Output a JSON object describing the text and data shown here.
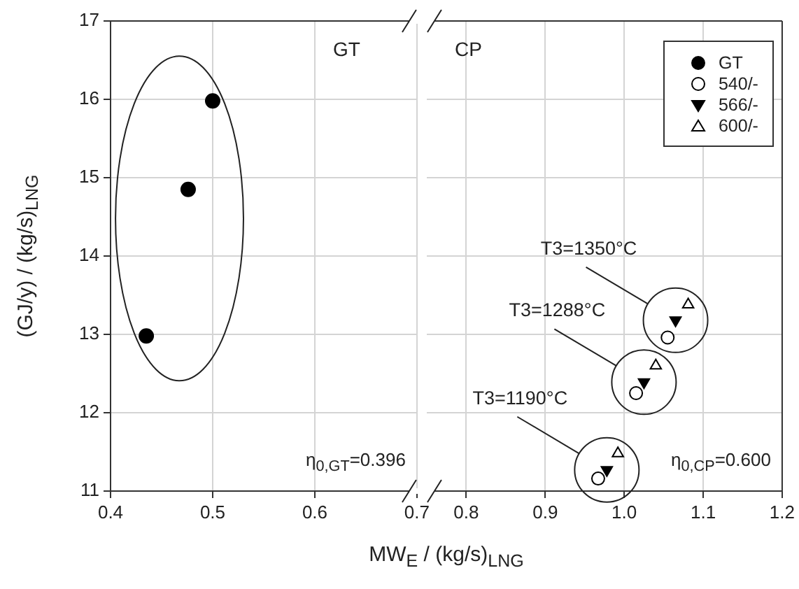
{
  "chart_data": [
    {
      "type": "scatter",
      "ylabel": "(GJ/y) / (kg/s)$_{LNG}$",
      "xlabel": "MW$_{E}$ / (kg/s)$_{LNG}$",
      "xlim": [
        0.4,
        0.7
      ],
      "xticks": [
        0.4,
        0.5,
        0.6,
        0.7
      ],
      "ylim": [
        11,
        17
      ],
      "yticks": [
        11,
        12,
        13,
        14,
        15,
        16,
        17
      ],
      "grid": true,
      "annotations": [
        "GT",
        "η$_{0,GT}$=0.396"
      ],
      "series": [
        {
          "color": "#000000",
          "marker": "circle",
          "x": [
            0.435,
            0.476,
            0.5
          ],
          "values": [
            12.98,
            14.85,
            15.98
          ]
        }
      ]
    },
    {
      "type": "scatter",
      "xlim": [
        0.75,
        1.2
      ],
      "xticks": [
        0.8,
        0.9,
        {
          "value": 1,
          "label": "1.0"
        },
        1.1,
        1.2
      ],
      "ylim": [
        11,
        17
      ],
      "yticks": [
        11,
        12,
        13,
        14,
        15,
        16,
        17
      ],
      "grid": true,
      "tick_labels": "x",
      "legend": "top right",
      "annotations": [
        "CP",
        "η$_{0,CP}$=0.600",
        "T3=1190°C",
        "T3=1288°C",
        "T3=1350°C"
      ],
      "series": [
        {
          "name": "GT",
          "color": "#000000",
          "marker": "circle"
        },
        {
          "name": "540/-",
          "color": "#ffffff",
          "marker": "circle",
          "x": [
            0.967,
            1.015,
            1.055
          ],
          "values": [
            11.16,
            12.25,
            12.96
          ]
        },
        {
          "name": "566/-",
          "color": "#000000",
          "marker": "triangle",
          "x": [
            0.978,
            1.025,
            1.065
          ],
          "values": [
            11.27,
            12.39,
            13.18
          ]
        },
        {
          "name": "600/-",
          "color": "#ffffff",
          "marker": "triangle",
          "x": [
            0.992,
            1.04,
            1.081
          ],
          "values": [
            11.48,
            12.6,
            13.38
          ]
        }
      ]
    }
  ]
}
